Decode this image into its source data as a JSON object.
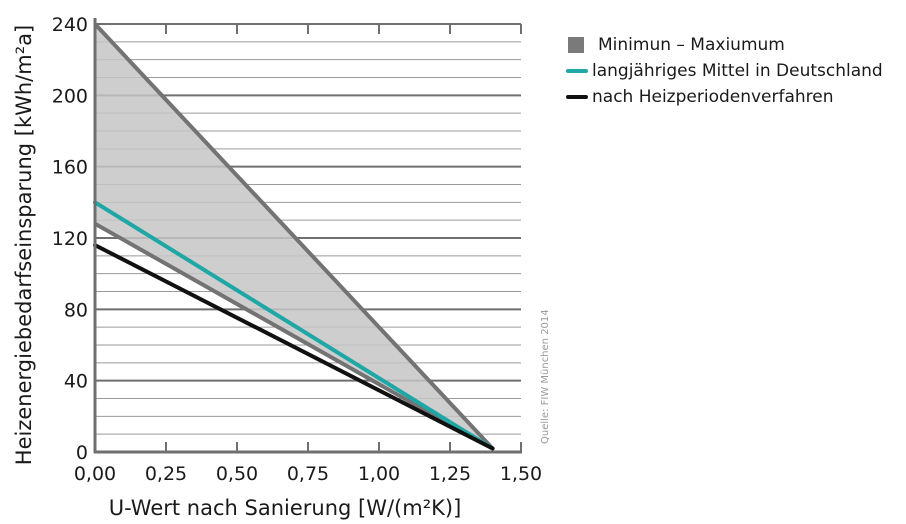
{
  "chart_data": {
    "type": "line",
    "xlabel": "U-Wert nach Sanierung [W/(m²K)]",
    "ylabel": "Heizenergiebedarfseinsparung [kWh/m²a]",
    "xlim": [
      0,
      1.5
    ],
    "ylim": [
      0,
      240
    ],
    "x_ticks": [
      0,
      0.25,
      0.5,
      0.75,
      1.0,
      1.25,
      1.5
    ],
    "x_tick_labels": [
      "0,00",
      "0,25",
      "0,50",
      "0,75",
      "1,00",
      "1,25",
      "1,50"
    ],
    "y_ticks": [
      0,
      40,
      80,
      120,
      160,
      200,
      240
    ],
    "y_tick_labels": [
      "0",
      "40",
      "80",
      "120",
      "160",
      "200",
      "240"
    ],
    "grid": "horizontal",
    "legend_position": "top-right",
    "band": {
      "name": "Minimun – Maxiumum",
      "x": [
        0,
        1.4
      ],
      "upper": [
        240,
        2
      ],
      "lower": [
        128,
        2
      ],
      "color": "#c6c6c6",
      "edge_color": "#737373"
    },
    "series": [
      {
        "name": "langjähriges Mittel in Deutschland",
        "x": [
          0,
          1.4
        ],
        "values": [
          140,
          2
        ],
        "color": "#1fa7a5"
      },
      {
        "name": "nach Heizperiodenverfahren",
        "x": [
          0,
          1.4
        ],
        "values": [
          116,
          2
        ],
        "color": "#111111"
      }
    ],
    "legend": [
      {
        "label": "Minimun – Maxiumum",
        "color": "#7a7a7a",
        "kind": "box"
      },
      {
        "label": "langjähriges Mittel in Deutschland",
        "color": "#1fa7a5",
        "kind": "line"
      },
      {
        "label": "nach Heizperiodenverfahren",
        "color": "#111111",
        "kind": "line"
      }
    ],
    "source": "Quelle: FIW München 2014"
  }
}
